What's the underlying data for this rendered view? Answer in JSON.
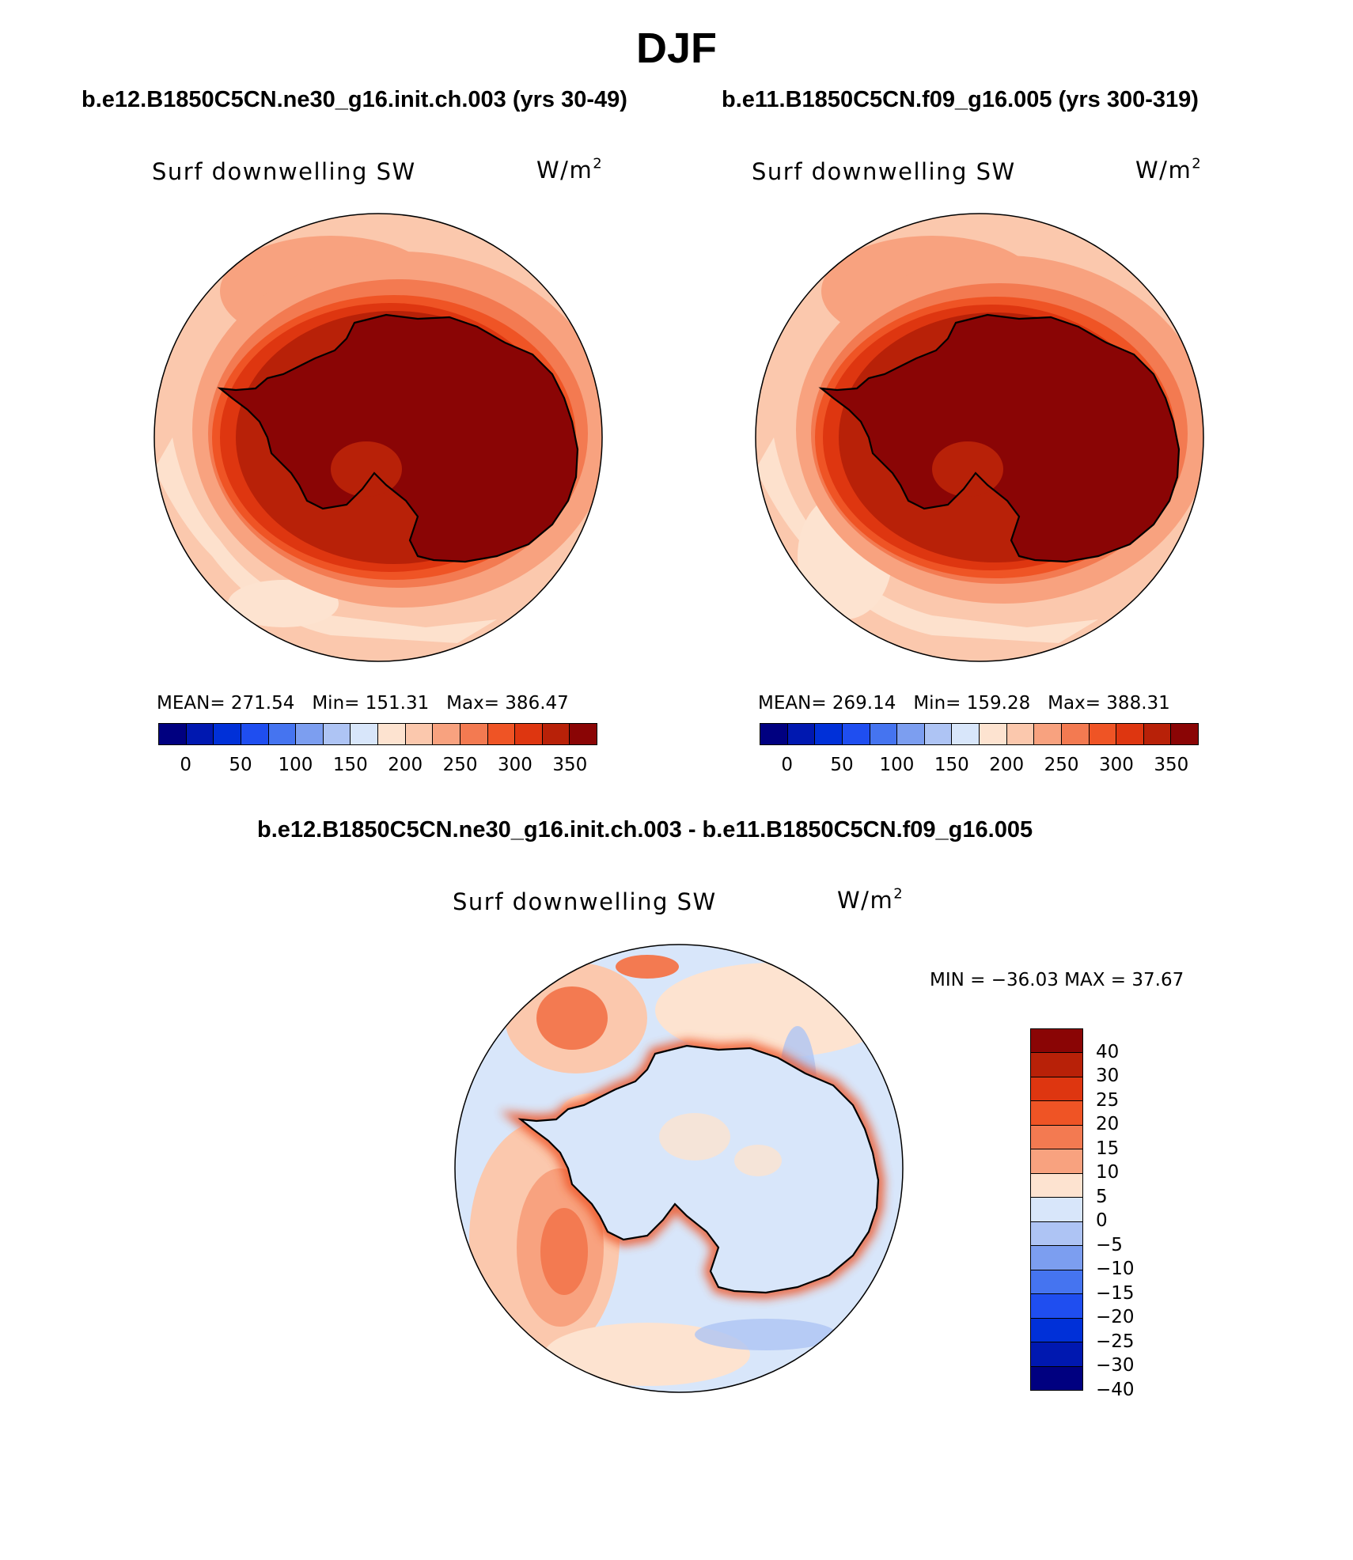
{
  "figure": {
    "season": "DJF"
  },
  "panels": {
    "left": {
      "case": "b.e12.B1850C5CN.ne30_g16.init.ch.003 (yrs 30-49)",
      "variable": "Surf downwelling SW",
      "units_base": "W/m",
      "units_exp": "2",
      "mean_label": "MEAN=",
      "mean": "271.54",
      "min_label": "Min=",
      "min": "151.31",
      "max_label": "Max=",
      "max": "386.47"
    },
    "right": {
      "case": "b.e11.B1850C5CN.f09_g16.005 (yrs 300-319)",
      "variable": "Surf downwelling SW",
      "units_base": "W/m",
      "units_exp": "2",
      "mean_label": "MEAN=",
      "mean": "269.14",
      "min_label": "Min=",
      "min": "159.28",
      "max_label": "Max=",
      "max": "388.31"
    },
    "diff": {
      "case": "b.e12.B1850C5CN.ne30_g16.init.ch.003 - b.e11.B1850C5CN.f09_g16.005",
      "variable": "Surf downwelling SW",
      "units_base": "W/m",
      "units_exp": "2",
      "minmax": "MIN = −36.03 MAX =   37.67"
    }
  },
  "colorbars": {
    "absolute": {
      "colors": [
        "#000080",
        "#0018b0",
        "#0030d8",
        "#1f4ef0",
        "#4574f0",
        "#7c9ef0",
        "#aec4f4",
        "#d8e6fa",
        "#fde3d0",
        "#fbc8ad",
        "#f8a27f",
        "#f37a51",
        "#ef5425",
        "#de3610",
        "#b82108",
        "#8a0505"
      ],
      "ticks": [
        "0",
        "50",
        "100",
        "150",
        "200",
        "250",
        "300",
        "350"
      ]
    },
    "difference": {
      "colors": [
        "#8a0505",
        "#b82108",
        "#de3610",
        "#ef5425",
        "#f37a51",
        "#f8a27f",
        "#fde3d0",
        "#d8e6fa",
        "#aec4f4",
        "#7c9ef0",
        "#4574f0",
        "#1f4ef0",
        "#0030d8",
        "#0018b0",
        "#000080"
      ],
      "ticks": [
        "40",
        "30",
        "25",
        "20",
        "15",
        "10",
        "5",
        "0",
        "−5",
        "−10",
        "−15",
        "−20",
        "−25",
        "−30",
        "−40"
      ]
    }
  }
}
